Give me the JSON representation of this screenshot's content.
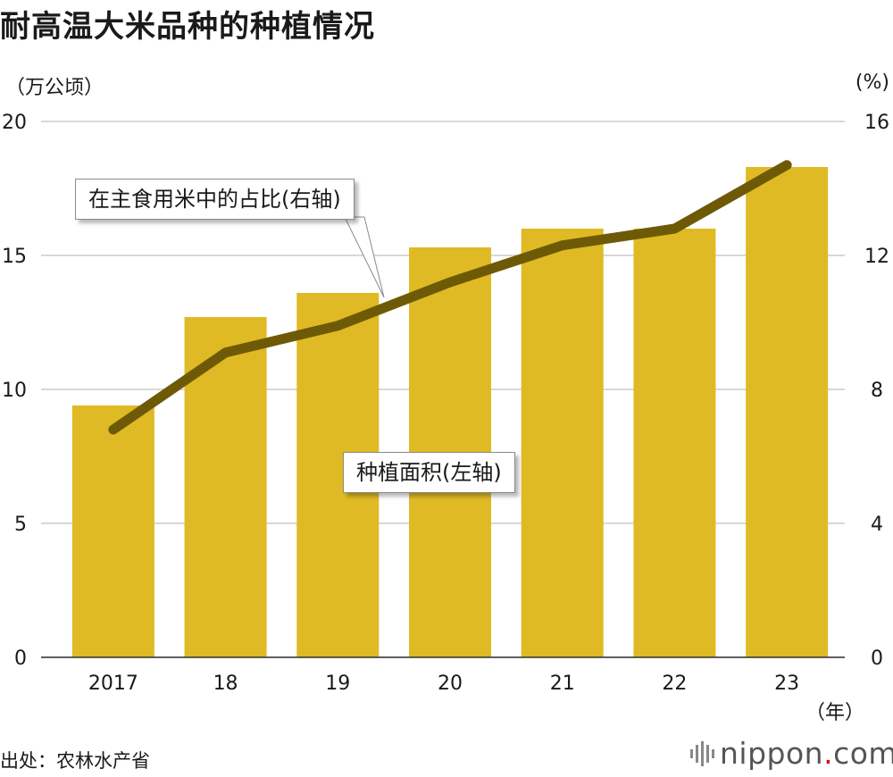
{
  "title": "耐高温大米品种的种植情况",
  "left_unit": "（万公顷）",
  "right_unit": "(%)",
  "year_unit": "（年）",
  "source": "出处：农林水产省",
  "brand": {
    "name": "nippon",
    "dot": ".",
    "suffix": "com",
    "dot_color": "#e60012"
  },
  "colors": {
    "bar": "#dfba24",
    "line": "#6e5a06",
    "grid": "#cccccc",
    "text": "#1a1a1a"
  },
  "chart_data": {
    "type": "bar",
    "categories": [
      "2017",
      "18",
      "19",
      "20",
      "21",
      "22",
      "23"
    ],
    "series": [
      {
        "name": "种植面积(左轴)",
        "type": "bar",
        "axis": "left",
        "values": [
          9.4,
          12.7,
          13.6,
          15.3,
          16.0,
          16.0,
          18.3
        ]
      },
      {
        "name": "在主食用米中的占比(右轴)",
        "type": "line",
        "axis": "right",
        "values": [
          6.8,
          9.1,
          9.9,
          11.2,
          12.3,
          12.8,
          14.7
        ]
      }
    ],
    "y_left": {
      "range": [
        0,
        20
      ],
      "ticks": [
        0,
        5,
        10,
        15,
        20
      ]
    },
    "y_right": {
      "range": [
        0,
        16
      ],
      "ticks": [
        0,
        4,
        8,
        12,
        16
      ]
    },
    "grid": true
  },
  "callouts": {
    "line_label": "在主食用米中的占比(右轴)",
    "bar_label": "种植面积(左轴)"
  }
}
